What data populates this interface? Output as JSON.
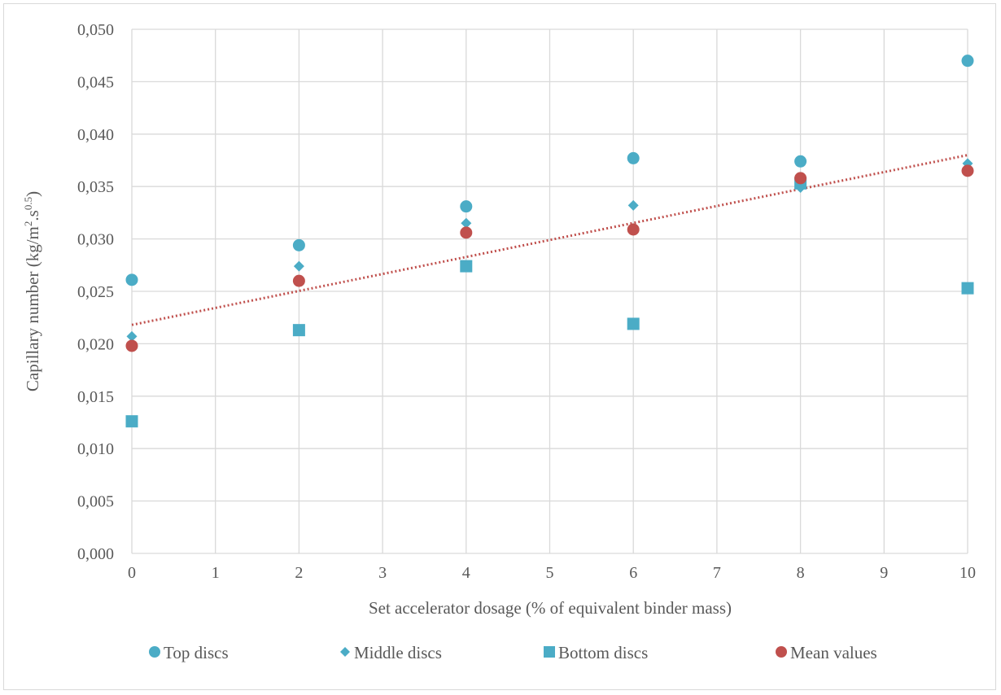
{
  "chart_data": {
    "type": "scatter",
    "title": "",
    "xlabel": "Set accelerator dosage (% of equivalent binder mass)",
    "ylabel": {
      "main": "Capillary number (kg/m",
      "sup1": "2",
      "mid": ".s",
      "sup2": "0.5",
      "end": ")"
    },
    "xlim": [
      0,
      10
    ],
    "ylim": [
      0,
      0.05
    ],
    "x_ticks": [
      0,
      1,
      2,
      3,
      4,
      5,
      6,
      7,
      8,
      9,
      10
    ],
    "x_tick_labels": [
      "0",
      "1",
      "2",
      "3",
      "4",
      "5",
      "6",
      "7",
      "8",
      "9",
      "10"
    ],
    "y_ticks": [
      0,
      0.005,
      0.01,
      0.015,
      0.02,
      0.025,
      0.03,
      0.035,
      0.04,
      0.045,
      0.05
    ],
    "y_tick_labels": [
      "0,000",
      "0,005",
      "0,010",
      "0,015",
      "0,020",
      "0,025",
      "0,030",
      "0,035",
      "0,040",
      "0,045",
      "0,050"
    ],
    "grid": true,
    "legend_position": "bottom",
    "series": [
      {
        "name": "Top discs",
        "marker": "circle",
        "color": "#4bacc6",
        "points": [
          [
            0,
            0.0261
          ],
          [
            2,
            0.0294
          ],
          [
            4,
            0.0331
          ],
          [
            6,
            0.0377
          ],
          [
            8,
            0.0374
          ],
          [
            10,
            0.047
          ]
        ]
      },
      {
        "name": "Middle discs",
        "marker": "diamond",
        "color": "#4bacc6",
        "points": [
          [
            0,
            0.0207
          ],
          [
            2,
            0.0274
          ],
          [
            4,
            0.0315
          ],
          [
            6,
            0.0332
          ],
          [
            8,
            0.0349
          ],
          [
            10,
            0.0372
          ]
        ]
      },
      {
        "name": "Bottom discs",
        "marker": "square",
        "color": "#4bacc6",
        "points": [
          [
            0,
            0.0126
          ],
          [
            2,
            0.0213
          ],
          [
            4,
            0.0274
          ],
          [
            6,
            0.0219
          ],
          [
            8,
            0.0353
          ],
          [
            10,
            0.0253
          ]
        ]
      },
      {
        "name": "Mean values",
        "marker": "circle",
        "color": "#c0504d",
        "points": [
          [
            0,
            0.0198
          ],
          [
            2,
            0.026
          ],
          [
            4,
            0.0306
          ],
          [
            6,
            0.0309
          ],
          [
            8,
            0.0358
          ],
          [
            10,
            0.0365
          ]
        ]
      }
    ],
    "trendline": {
      "series": "Mean values",
      "type": "linear",
      "style": "dotted",
      "color": "#c0504d",
      "from": [
        0,
        0.0218
      ],
      "to": [
        10,
        0.038
      ]
    }
  }
}
